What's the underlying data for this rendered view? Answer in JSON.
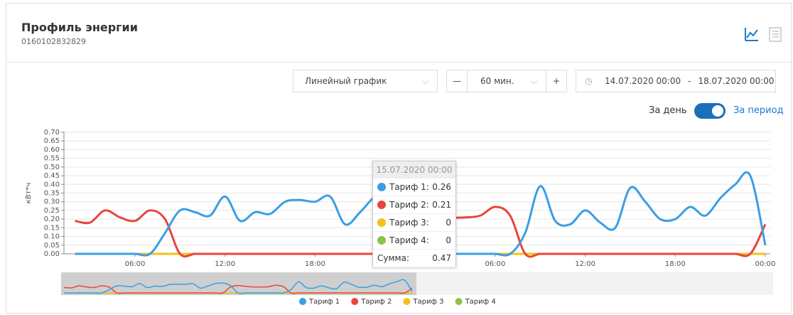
{
  "header": {
    "title": "Профиль энергии",
    "subtitle": "0160102832829"
  },
  "controls": {
    "chart_type": "Линейный график",
    "interval": "60 мин.",
    "date_from": "14.07.2020 00:00",
    "date_separator": "-",
    "date_to": "18.07.2020 00:00",
    "toggle_left": "За день",
    "toggle_right": "За период"
  },
  "tooltip": {
    "title": "15.07.2020 00:00",
    "rows": [
      {
        "label": "Тариф 1:",
        "value": 0.26
      },
      {
        "label": "Тариф 2:",
        "value": 0.21
      },
      {
        "label": "Тариф 3:",
        "value": 0
      },
      {
        "label": "Тариф 4:",
        "value": 0
      }
    ],
    "sum_label": "Сумма:",
    "sum": 0.47
  },
  "chart_data": {
    "type": "line",
    "y_label": "кВт*ч",
    "categories": [
      null,
      null,
      null,
      null,
      "06:00",
      null,
      null,
      null,
      null,
      null,
      "12:00",
      null,
      null,
      null,
      null,
      null,
      "18:00",
      null,
      null,
      null,
      null,
      null,
      "00:00",
      null,
      null,
      null,
      null,
      null,
      "06:00",
      null,
      null,
      null,
      null,
      null,
      "12:00",
      null,
      null,
      null,
      null,
      null,
      "18:00",
      null,
      null,
      null,
      null,
      null,
      "00:00"
    ],
    "series": [
      {
        "name": "Тариф 1",
        "color": "#3a9ee4",
        "values": [
          0,
          0,
          0,
          0,
          0,
          0,
          0.12,
          0.25,
          0.24,
          0.22,
          0.33,
          0.19,
          0.24,
          0.23,
          0.3,
          0.31,
          0.3,
          0.33,
          0.17,
          0.24,
          0.33,
          0.35,
          0.26,
          0,
          0,
          0,
          0,
          0,
          0,
          0,
          0.12,
          0.39,
          0.19,
          0.17,
          0.25,
          0.18,
          0.15,
          0.38,
          0.3,
          0.2,
          0.2,
          0.27,
          0.22,
          0.32,
          0.4,
          0.45,
          0.05
        ]
      },
      {
        "name": "Тариф 2",
        "color": "#e8463c",
        "values": [
          0.19,
          0.18,
          0.25,
          0.21,
          0.19,
          0.25,
          0.2,
          0,
          0,
          0,
          0,
          0,
          0,
          0,
          0,
          0,
          0,
          0,
          0,
          0,
          0,
          0,
          0.21,
          0.26,
          0.23,
          0.21,
          0.21,
          0.22,
          0.27,
          0.22,
          0,
          0,
          0,
          0,
          0,
          0,
          0,
          0,
          0,
          0,
          0,
          0,
          0,
          0,
          0,
          0,
          0.17
        ]
      },
      {
        "name": "Тариф 3",
        "color": "#f5c01a",
        "values": [
          0,
          0,
          0,
          0,
          0,
          0,
          0,
          0,
          0,
          0,
          0,
          0,
          0,
          0,
          0,
          0,
          0,
          0,
          0,
          0,
          0,
          0,
          0,
          0,
          0,
          0,
          0,
          0,
          0,
          0,
          0,
          0,
          0,
          0,
          0,
          0,
          0,
          0,
          0,
          0,
          0,
          0,
          0,
          0,
          0,
          0,
          0
        ]
      },
      {
        "name": "Тариф 4",
        "color": "#8bc34a",
        "values": [
          0,
          0,
          0,
          0,
          0,
          0,
          0,
          0,
          0,
          0,
          0,
          0,
          0,
          0,
          0,
          0,
          0,
          0,
          0,
          0,
          0,
          0,
          0,
          0,
          0,
          0,
          0,
          0,
          0,
          0,
          0,
          0,
          0,
          0,
          0,
          0,
          0,
          0,
          0,
          0,
          0,
          0,
          0,
          0,
          0,
          0,
          0
        ]
      }
    ],
    "ylim": [
      0,
      0.7
    ],
    "yticks": [
      {
        "value": 0,
        "label": "0.00"
      },
      {
        "value": 0.05,
        "label": "0.05"
      },
      {
        "value": 0.1,
        "label": "0.10"
      },
      {
        "value": 0.15,
        "label": "0.15"
      },
      {
        "value": 0.2,
        "label": "0.20"
      },
      {
        "value": 0.25,
        "label": "0.25"
      },
      {
        "value": 0.3,
        "label": "0.30"
      },
      {
        "value": 0.35,
        "label": "0.35"
      },
      {
        "value": 0.4,
        "label": "0.40"
      },
      {
        "value": 0.45,
        "label": "0.45"
      },
      {
        "value": 0.5,
        "label": "0.50"
      },
      {
        "value": 0.55,
        "label": "0.55"
      },
      {
        "value": 0.6,
        "label": "0.60"
      },
      {
        "value": 0.65,
        "label": "0.65"
      },
      {
        "value": 0.7,
        "label": "0.70"
      }
    ],
    "grid": true,
    "legend": "bottom"
  }
}
